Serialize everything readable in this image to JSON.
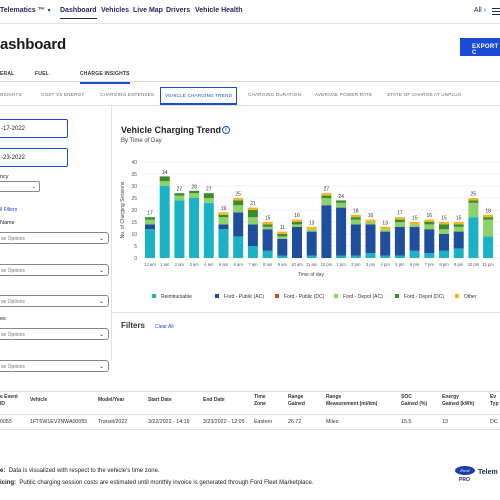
{
  "nav": {
    "brand": "Telematics ™",
    "links": [
      "Dashboard",
      "Vehicles",
      "Live Map",
      "Drivers",
      "Vehicle Health"
    ],
    "all_label": "All"
  },
  "page": {
    "title": "ashboard",
    "export_label": "EXPORT C"
  },
  "tabs": [
    "ERAL",
    "FUEL",
    "CHARGE INSIGHTS"
  ],
  "subtabs": [
    "NSIGHTS",
    "COST VS ENERGY",
    "CHARGING EXPENSES",
    "VEHICLE CHARGING TREND",
    "CHARGING DURATION",
    "AVERAGE POWER RATE",
    "STATE OF CHARGE AT UNPLUG"
  ],
  "filters": {
    "start_date": "-17-2022",
    "end_date": "-23-2022",
    "frequency_label": "ncy",
    "frequency_value": "",
    "all_filters": "ll Filters",
    "name_label": "Name",
    "option_placeholder": "se Options",
    "es_label": "es"
  },
  "chart": {
    "title": "Vehicle Charging Trend",
    "info": "i",
    "subtitle": "By Time of Day",
    "filters_title": "Filters",
    "clear_all": "Clear All"
  },
  "chart_data": {
    "type": "bar",
    "stacked": true,
    "ylabel": "No. of Charging Sessions",
    "xlabel": "Time of day",
    "ylim": [
      0,
      40
    ],
    "yticks": [
      0,
      5,
      10,
      15,
      20,
      25,
      30,
      35,
      40
    ],
    "grid": true,
    "legend_position": "bottom",
    "categories": [
      "12 am",
      "1 am",
      "2 am",
      "3 am",
      "4 am",
      "5 am",
      "6 am",
      "7 am",
      "8 am",
      "9 am",
      "10 am",
      "11 am",
      "12 pm",
      "1 pm",
      "2 pm",
      "3 pm",
      "4 pm",
      "5 pm",
      "6 pm",
      "7 pm",
      "8 pm",
      "9 pm",
      "10 pm",
      "11 pm"
    ],
    "totals": [
      17,
      34,
      27,
      28,
      27,
      19,
      25,
      21,
      15,
      11,
      16,
      13,
      27,
      24,
      18,
      16,
      13,
      17,
      15,
      16,
      15,
      15,
      25,
      18
    ],
    "series": [
      {
        "name": "Reimbursable",
        "color": "#1ab3c6",
        "values": [
          12,
          30,
          24,
          25,
          23,
          12,
          9,
          5,
          3,
          1,
          0,
          1,
          0,
          1,
          1,
          2,
          1,
          1,
          3,
          2,
          3,
          4,
          17,
          9
        ]
      },
      {
        "name": "Ford - Public (AC)",
        "color": "#1f4e9c",
        "values": [
          2,
          0,
          0,
          0,
          0,
          2,
          10,
          9,
          9,
          7,
          13,
          10,
          22,
          20,
          13,
          12,
          10,
          12,
          10,
          10,
          7,
          7,
          0,
          0
        ]
      },
      {
        "name": "Ford - Public (DC)",
        "color": "#d9422b",
        "values": [
          0,
          0,
          0,
          0,
          0,
          0,
          0,
          0,
          0,
          0,
          0,
          0,
          0,
          0,
          0,
          0,
          0,
          0,
          0,
          0,
          0,
          0,
          0,
          0
        ]
      },
      {
        "name": "Ford - Depot (AC)",
        "color": "#8bd26b",
        "values": [
          2,
          2,
          2,
          2,
          2,
          3,
          3,
          3,
          1,
          1,
          1,
          1,
          3,
          2,
          2,
          1,
          1,
          2,
          1,
          2,
          2,
          2,
          6,
          7
        ]
      },
      {
        "name": "Ford - Depot (DC)",
        "color": "#3a8a2e",
        "values": [
          1,
          2,
          1,
          1,
          2,
          1,
          2,
          3,
          1,
          1,
          1,
          0,
          1,
          1,
          1,
          0,
          0,
          1,
          0,
          1,
          2,
          1,
          1,
          1
        ]
      },
      {
        "name": "Other",
        "color": "#f2b51c",
        "values": [
          0,
          0,
          0,
          0,
          0,
          1,
          1,
          1,
          1,
          1,
          1,
          1,
          1,
          0,
          1,
          1,
          1,
          1,
          1,
          1,
          1,
          1,
          1,
          1
        ]
      }
    ]
  },
  "table": {
    "headers": [
      "e Event\nID",
      "Vehicle",
      "Model/Year",
      "Start Date",
      "End Date",
      "Time\nZone",
      "Range\nGained",
      "Range\nMeasurement (mi/km)",
      "SOC\nGained (%)",
      "Energy\nGained (kWh)",
      "Ev\nTyp"
    ],
    "rows": [
      [
        "0055",
        "1FT6W1EV2NWA00055",
        "Transit/2022",
        "3/22/2022 - 14:19",
        "3/23/2022 - 12:05",
        "Eastern",
        "26.72",
        "Miles",
        "15.5",
        "13",
        "DC"
      ]
    ]
  },
  "footer": {
    "note1_bold": "e:",
    "note1": "Data is visualized with respect to the vehicle's time zone.",
    "note2_bold": "icing:",
    "note2": "Public charging session costs are estimated until monthly invoice is generated through Ford Fleet Marketplace.",
    "logo": "Ford",
    "pro": "PRO",
    "brand_suffix": "Telem"
  }
}
